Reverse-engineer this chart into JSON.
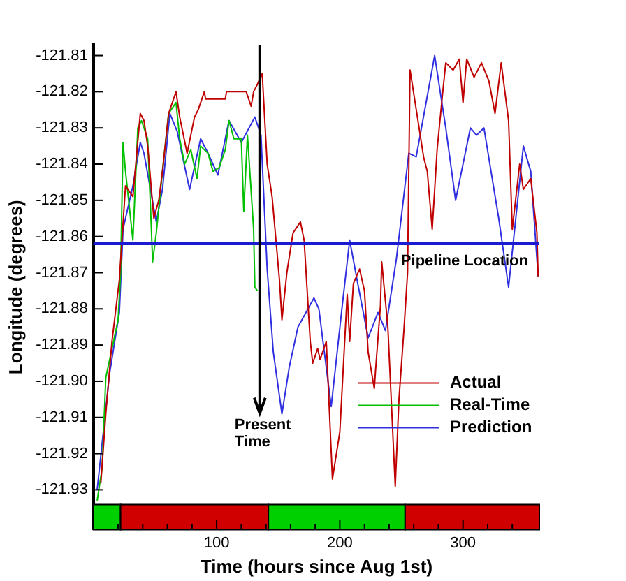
{
  "chart_data": {
    "type": "line",
    "xlabel": "Time (hours since Aug 1st)",
    "ylabel": "Longitude (degrees)",
    "xlim": [
      0,
      362
    ],
    "xticks": [
      {
        "value": 20,
        "label": null
      },
      {
        "value": 40,
        "label": null
      },
      {
        "value": 60,
        "label": null
      },
      {
        "value": 80,
        "label": null
      },
      100,
      {
        "value": 120,
        "label": null
      },
      {
        "value": 140,
        "label": null
      },
      {
        "value": 160,
        "label": null
      },
      {
        "value": 180,
        "label": null
      },
      200,
      {
        "value": 220,
        "label": null
      },
      {
        "value": 240,
        "label": null
      },
      {
        "value": 260,
        "label": null
      },
      {
        "value": 280,
        "label": null
      },
      300,
      {
        "value": 320,
        "label": null
      },
      {
        "value": 340,
        "label": null
      }
    ],
    "ylim": [
      -121.941,
      -121.807
    ],
    "yticks": [
      -121.93,
      -121.92,
      -121.91,
      {
        "value": -121.9,
        "label": "-121.90"
      },
      -121.89,
      -121.88,
      -121.87,
      -121.86,
      -121.85,
      -121.84,
      -121.83,
      -121.82,
      -121.81
    ],
    "grid": false,
    "legend": "bottom right",
    "marker": "none",
    "line_style": "solid",
    "series": [
      {
        "name": "Actual",
        "color": "#c00000",
        "x": [
          6,
          10,
          15,
          21,
          26,
          32,
          38,
          41,
          44,
          49,
          53,
          56,
          61,
          67,
          70,
          76,
          82,
          85,
          90,
          91,
          107,
          108,
          124,
          128,
          130,
          133,
          137,
          141,
          145,
          151,
          153,
          157,
          162,
          168,
          171,
          176,
          178,
          182,
          184,
          189,
          194,
          200,
          206,
          208,
          211,
          216,
          220,
          223,
          228,
          229,
          233,
          234,
          239,
          245,
          248,
          252,
          255,
          257,
          263,
          268,
          271,
          275,
          279,
          283,
          286,
          292,
          297,
          300,
          303,
          309,
          315,
          321,
          326,
          331,
          337,
          340,
          346,
          349,
          355,
          360,
          361
        ],
        "values": [
          -121.928,
          -121.909,
          -121.889,
          -121.872,
          -121.846,
          -121.849,
          -121.826,
          -121.828,
          -121.835,
          -121.855,
          -121.85,
          -121.842,
          -121.826,
          -121.82,
          -121.827,
          -121.837,
          -121.827,
          -121.825,
          -121.82,
          -121.822,
          -121.822,
          -121.82,
          -121.82,
          -121.824,
          -121.82,
          -121.818,
          -121.815,
          -121.84,
          -121.849,
          -121.872,
          -121.883,
          -121.87,
          -121.859,
          -121.856,
          -121.861,
          -121.889,
          -121.895,
          -121.891,
          -121.894,
          -121.889,
          -121.927,
          -121.914,
          -121.876,
          -121.889,
          -121.873,
          -121.869,
          -121.875,
          -121.892,
          -121.902,
          -121.897,
          -121.879,
          -121.867,
          -121.885,
          -121.929,
          -121.905,
          -121.886,
          -121.87,
          -121.814,
          -121.827,
          -121.838,
          -121.842,
          -121.858,
          -121.836,
          -121.822,
          -121.812,
          -121.814,
          -121.811,
          -121.823,
          -121.811,
          -121.816,
          -121.812,
          -121.817,
          -121.826,
          -121.812,
          -121.828,
          -121.858,
          -121.84,
          -121.847,
          -121.844,
          -121.859,
          -121.871
        ]
      },
      {
        "name": "Real-Time",
        "color": "#00c000",
        "x": [
          3,
          7,
          10,
          15,
          20,
          22,
          24,
          26,
          32,
          36,
          39,
          44,
          47,
          48,
          51,
          56,
          61,
          67,
          70,
          74,
          79,
          84,
          87,
          93,
          97,
          102,
          107,
          110,
          114,
          120,
          122,
          125,
          130,
          131,
          133
        ],
        "values": [
          -121.933,
          -121.924,
          -121.899,
          -121.891,
          -121.883,
          -121.87,
          -121.834,
          -121.842,
          -121.861,
          -121.83,
          -121.828,
          -121.833,
          -121.858,
          -121.867,
          -121.859,
          -121.842,
          -121.826,
          -121.823,
          -121.833,
          -121.84,
          -121.836,
          -121.844,
          -121.835,
          -121.837,
          -121.842,
          -121.841,
          -121.836,
          -121.828,
          -121.833,
          -121.833,
          -121.853,
          -121.832,
          -121.858,
          -121.874,
          -121.875
        ]
      },
      {
        "name": "Prediction",
        "color": "#3030e0",
        "x": [
          3,
          13,
          21,
          24,
          32,
          38,
          41,
          51,
          56,
          62,
          68,
          78,
          87,
          93,
          101,
          110,
          120,
          131,
          136,
          141,
          146,
          153,
          159,
          166,
          179,
          183,
          193,
          202,
          208,
          214,
          223,
          231,
          237,
          246,
          256,
          262,
          277,
          286,
          294,
          306,
          311,
          317,
          329,
          337,
          349,
          355,
          361
        ],
        "values": [
          -121.93,
          -121.898,
          -121.881,
          -121.858,
          -121.846,
          -121.834,
          -121.837,
          -121.856,
          -121.847,
          -121.826,
          -121.831,
          -121.847,
          -121.833,
          -121.837,
          -121.843,
          -121.828,
          -121.834,
          -121.827,
          -121.832,
          -121.869,
          -121.892,
          -121.909,
          -121.896,
          -121.885,
          -121.877,
          -121.88,
          -121.907,
          -121.879,
          -121.861,
          -121.872,
          -121.888,
          -121.881,
          -121.886,
          -121.866,
          -121.837,
          -121.838,
          -121.81,
          -121.83,
          -121.85,
          -121.83,
          -121.832,
          -121.83,
          -121.855,
          -121.874,
          -121.835,
          -121.842,
          -121.871
        ]
      }
    ],
    "ref_lines": [
      {
        "axis": "y",
        "value": -121.862,
        "label": "Pipeline Location",
        "color": "#1a1ad0"
      },
      {
        "axis": "x",
        "value": 135,
        "label": "Present Time",
        "color": "#000000"
      }
    ],
    "bands": [
      {
        "axis": "x",
        "from": 0,
        "to": 22,
        "color": "#00d000"
      },
      {
        "axis": "x",
        "from": 22,
        "to": 142,
        "color": "#d00000"
      },
      {
        "axis": "x",
        "from": 142,
        "to": 253,
        "color": "#00d000"
      },
      {
        "axis": "x",
        "from": 253,
        "to": 362,
        "color": "#d00000"
      }
    ]
  }
}
